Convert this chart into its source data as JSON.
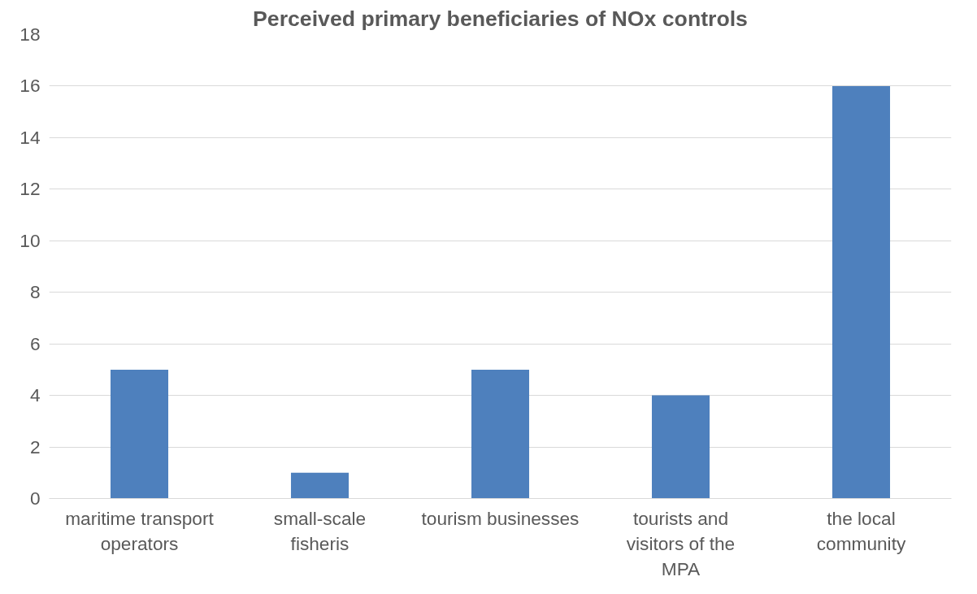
{
  "chart_data": {
    "type": "bar",
    "title": "Perceived primary beneficiaries of NOx controls",
    "categories": [
      "maritime transport operators",
      "small-scale fisheris",
      "tourism businesses",
      "tourists and visitors of the MPA",
      "the local community"
    ],
    "values": [
      5,
      1,
      5,
      4,
      16
    ],
    "color": "#4e80bd",
    "ylim": [
      0,
      18
    ],
    "yticks": [
      0,
      2,
      4,
      6,
      8,
      10,
      12,
      14,
      16,
      18
    ],
    "grid": "y"
  }
}
